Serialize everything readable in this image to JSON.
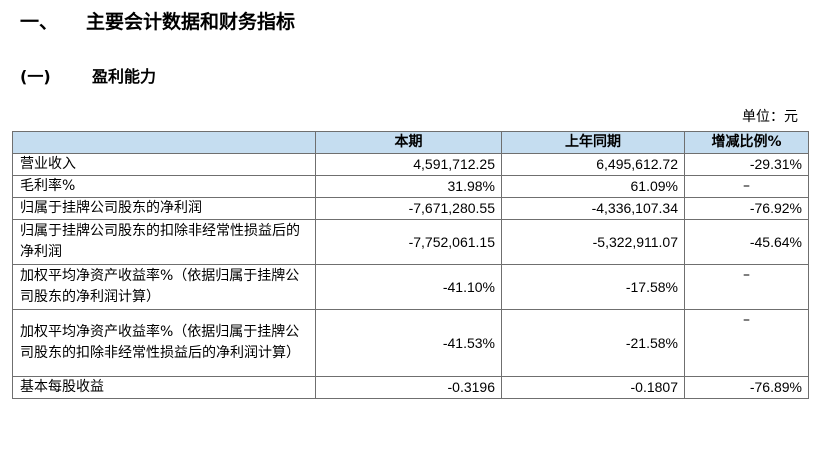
{
  "heading1": {
    "number": "一、",
    "text": "主要会计数据和财务指标"
  },
  "heading2": {
    "number": "(一)",
    "text": "盈利能力"
  },
  "unit_label": "单位：元",
  "table": {
    "headers": [
      "",
      "本期",
      "上年同期",
      "增减比例%"
    ],
    "rows": [
      {
        "label": "营业收入",
        "current": "4,591,712.25",
        "previous": "6,495,612.72",
        "change": "-29.31%"
      },
      {
        "label": "毛利率%",
        "current": "31.98%",
        "previous": "61.09%",
        "change": "–"
      },
      {
        "label": "归属于挂牌公司股东的净利润",
        "current": "-7,671,280.55",
        "previous": "-4,336,107.34",
        "change": "-76.92%"
      },
      {
        "label": "归属于挂牌公司股东的扣除非经常性损益后的净利润",
        "current": "-7,752,061.15",
        "previous": "-5,322,911.07",
        "change": "-45.64%"
      },
      {
        "label": "加权平均净资产收益率%（依据归属于挂牌公司股东的净利润计算）",
        "current": "-41.10%",
        "previous": "-17.58%",
        "change": "–"
      },
      {
        "label": "加权平均净资产收益率%（依据归属于挂牌公司股东的扣除非经常性损益后的净利润计算）",
        "current": "-41.53%",
        "previous": "-21.58%",
        "change": "–"
      },
      {
        "label": "基本每股收益",
        "current": "-0.3196",
        "previous": "-0.1807",
        "change": "-76.89%"
      }
    ]
  }
}
